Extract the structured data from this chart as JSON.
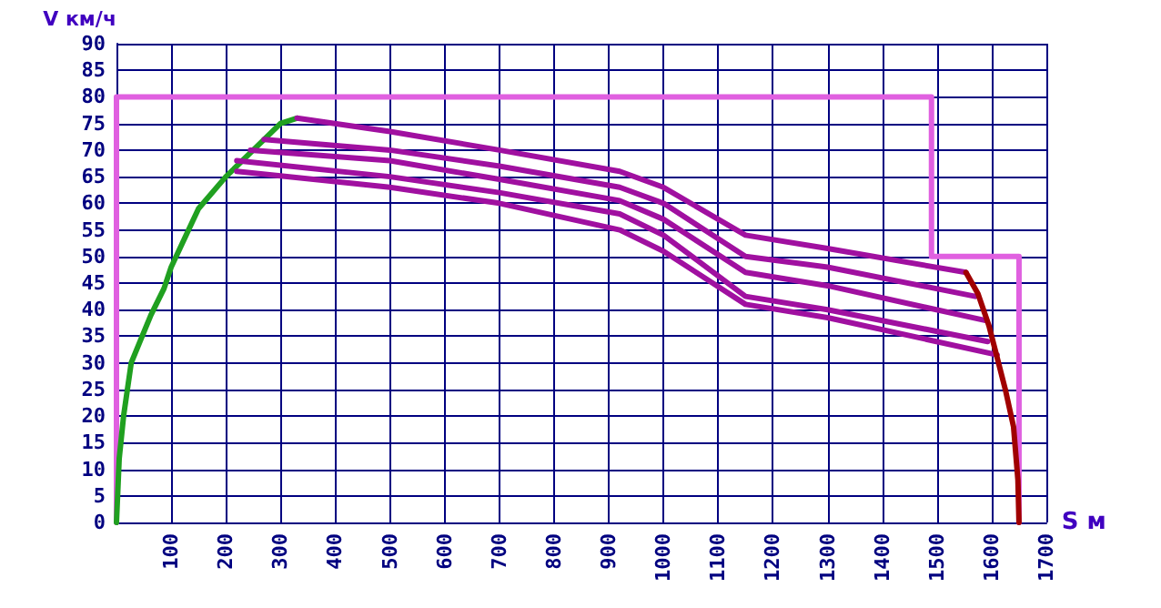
{
  "chart_data": {
    "type": "line",
    "xlabel": "S м",
    "ylabel": "V км/ч",
    "xlim": [
      0,
      1700
    ],
    "xticks": [
      {
        "value": 0,
        "label": null
      },
      100,
      200,
      300,
      400,
      500,
      600,
      700,
      800,
      900,
      1000,
      1100,
      1200,
      1300,
      1400,
      1500,
      1600,
      1700
    ],
    "ylim": [
      0,
      90
    ],
    "yticks": [
      0,
      5,
      10,
      15,
      20,
      25,
      30,
      35,
      40,
      45,
      50,
      55,
      60,
      65,
      70,
      75,
      80,
      85,
      90
    ],
    "grid": true,
    "marker": "none",
    "line_style": "solid",
    "series": [
      {
        "color": "#e060e0",
        "x": [
          0,
          0,
          1490,
          1490,
          1650,
          1650
        ],
        "values": [
          0,
          80,
          80,
          50,
          50,
          0
        ]
      },
      {
        "color": "#20a020",
        "x": [
          0,
          5,
          13,
          27,
          47,
          63,
          87,
          100,
          150,
          200,
          250,
          300,
          330
        ],
        "values": [
          0,
          12,
          20,
          30,
          35,
          39,
          44,
          48,
          59,
          65,
          70,
          75,
          76
        ]
      },
      {
        "color": "#a010a0",
        "x": [
          330,
          500,
          700,
          920,
          1000,
          1150,
          1300,
          1553
        ],
        "values": [
          76,
          73.5,
          70,
          66,
          63,
          54,
          51.5,
          47
        ]
      },
      {
        "color": "#a010a0",
        "x": [
          270,
          500,
          700,
          920,
          1000,
          1150,
          1300,
          1570
        ],
        "values": [
          72,
          70,
          67,
          63,
          60,
          50,
          48,
          42.5
        ]
      },
      {
        "color": "#a010a0",
        "x": [
          245,
          500,
          700,
          920,
          1000,
          1150,
          1300,
          1587
        ],
        "values": [
          70,
          68,
          64.5,
          60.5,
          57,
          47,
          44.5,
          38
        ]
      },
      {
        "color": "#a010a0",
        "x": [
          220,
          500,
          700,
          920,
          1000,
          1150,
          1300,
          1593
        ],
        "values": [
          68,
          65,
          62,
          58,
          54,
          42.5,
          40,
          34
        ]
      },
      {
        "color": "#a010a0",
        "x": [
          220,
          500,
          700,
          920,
          1000,
          1150,
          1300,
          1610
        ],
        "values": [
          66,
          63,
          60,
          55,
          51,
          41,
          38.5,
          31.5
        ]
      },
      {
        "color": "#a00000",
        "x": [
          1553,
          1575,
          1595,
          1610,
          1625,
          1640,
          1648,
          1650
        ],
        "values": [
          47,
          43,
          37,
          31,
          25,
          18,
          8,
          0
        ]
      }
    ]
  }
}
